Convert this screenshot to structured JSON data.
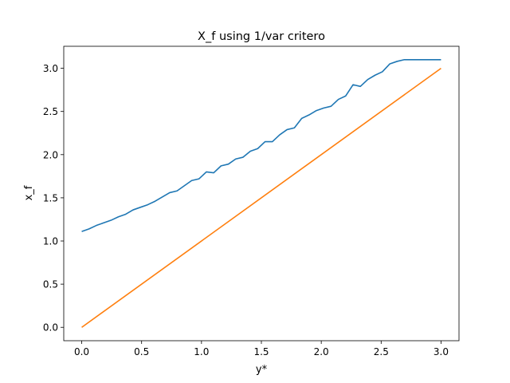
{
  "chart_data": {
    "type": "line",
    "title": "X_f using 1/var critero",
    "xlabel": "y*",
    "ylabel": "x_f",
    "xlim": [
      -0.15,
      3.15
    ],
    "ylim": [
      -0.155,
      3.255
    ],
    "xticks": [
      0.0,
      0.5,
      1.0,
      1.5,
      2.0,
      2.5,
      3.0
    ],
    "xtick_labels": [
      "0.0",
      "0.5",
      "1.0",
      "1.5",
      "2.0",
      "2.5",
      "3.0"
    ],
    "yticks": [
      0.0,
      0.5,
      1.0,
      1.5,
      2.0,
      2.5,
      3.0
    ],
    "ytick_labels": [
      "0.0",
      "0.5",
      "1.0",
      "1.5",
      "2.0",
      "2.5",
      "3.0"
    ],
    "grid": false,
    "series": [
      {
        "color": "#1f77b4",
        "x": [
          0.0,
          0.0612,
          0.1224,
          0.1837,
          0.2449,
          0.3061,
          0.3673,
          0.4286,
          0.4898,
          0.551,
          0.6122,
          0.6735,
          0.7347,
          0.7959,
          0.8571,
          0.9184,
          0.9796,
          1.0408,
          1.102,
          1.1633,
          1.2245,
          1.2857,
          1.3469,
          1.4082,
          1.4694,
          1.5306,
          1.5918,
          1.6531,
          1.7143,
          1.7755,
          1.8367,
          1.898,
          1.9592,
          2.0204,
          2.0816,
          2.1429,
          2.2041,
          2.2653,
          2.3265,
          2.3878,
          2.449,
          2.5102,
          2.5714,
          2.6327,
          2.6939,
          2.7551,
          2.8163,
          2.8776,
          2.9388,
          3.0
        ],
        "y": [
          1.11,
          1.14,
          1.18,
          1.21,
          1.24,
          1.28,
          1.31,
          1.36,
          1.39,
          1.42,
          1.46,
          1.51,
          1.56,
          1.58,
          1.64,
          1.7,
          1.72,
          1.8,
          1.79,
          1.87,
          1.89,
          1.95,
          1.97,
          2.04,
          2.07,
          2.15,
          2.15,
          2.23,
          2.29,
          2.31,
          2.42,
          2.46,
          2.51,
          2.54,
          2.56,
          2.64,
          2.68,
          2.81,
          2.79,
          2.87,
          2.92,
          2.96,
          3.05,
          3.08,
          3.1,
          3.1,
          3.1,
          3.1,
          3.1,
          3.1
        ]
      },
      {
        "color": "#ff7f0e",
        "x": [
          0.0,
          3.0
        ],
        "y": [
          0.0,
          3.0
        ]
      }
    ]
  }
}
